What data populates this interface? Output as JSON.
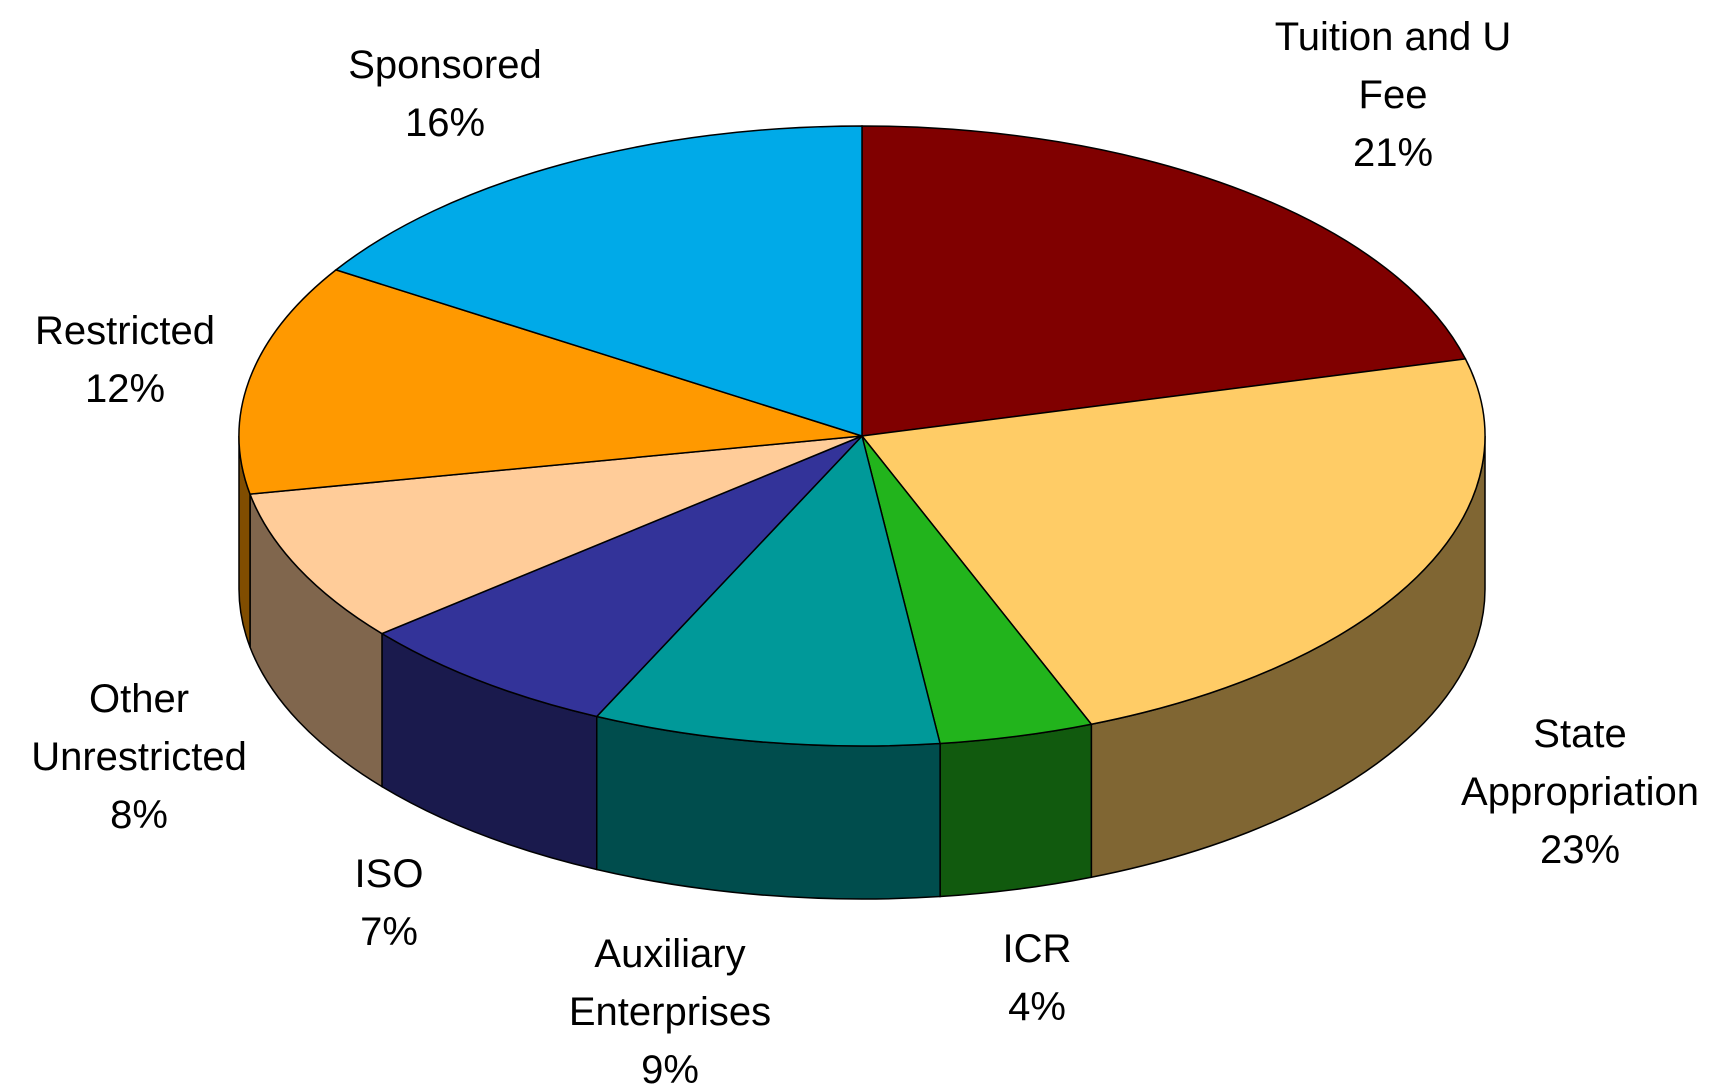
{
  "chart_data": {
    "type": "pie3d",
    "categories": [
      "Tuition and U Fee",
      "State Appropriation",
      "ICR",
      "Auxiliary Enterprises",
      "ISO",
      "Other Unrestricted",
      "Restricted",
      "Sponsored"
    ],
    "values": [
      21,
      23,
      4,
      9,
      7,
      8,
      12,
      16
    ],
    "value_labels": [
      "21%",
      "23%",
      "4%",
      "9%",
      "7%",
      "8%",
      "12%",
      "16%"
    ],
    "colors": [
      "#800000",
      "#ffcc66",
      "#22b41c",
      "#009999",
      "#333399",
      "#ffcc99",
      "#ff9900",
      "#00aae8"
    ]
  }
}
